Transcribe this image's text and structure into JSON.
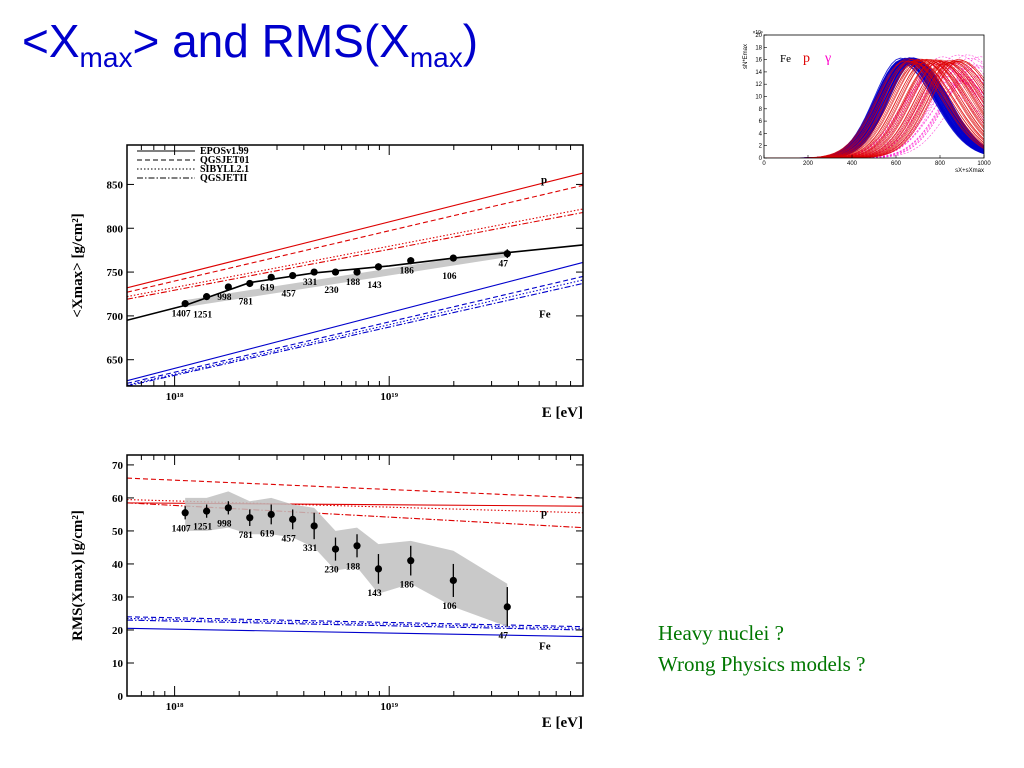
{
  "slide": {
    "title_pre": "<X",
    "title_sub1": "max",
    "title_mid": "> and RMS(X",
    "title_sub2": "max",
    "title_post": ")",
    "note_line1": "Heavy nuclei ?",
    "note_line2": "Wrong Physics models ?"
  },
  "colors": {
    "title": "#0000cc",
    "proton": "#dd0000",
    "iron": "#0000cc",
    "data": "#000000",
    "band": "#c0c0c0",
    "note": "#007700",
    "gamma": "#ff00cc"
  },
  "chart_data": [
    {
      "type": "line",
      "name": "xmax",
      "xlabel": "E [eV]",
      "ylabel": "<Xmax> [g/cm²]",
      "xscale": "log",
      "xlim": [
        6e+17,
        8e+19
      ],
      "ylim": [
        620,
        895
      ],
      "yticks": [
        650,
        700,
        750,
        800,
        850
      ],
      "xticks": [
        {
          "value": 1e+18,
          "label": "10¹⁸"
        },
        {
          "value": 1e+19,
          "label": "10¹⁹"
        }
      ],
      "legend": {
        "placement": "top-left",
        "entries": [
          {
            "label": "EPOSv1.99",
            "style": "solid"
          },
          {
            "label": "QGSJET01",
            "style": "dashed"
          },
          {
            "label": "SIBYLL2.1",
            "style": "dotted"
          },
          {
            "label": "QGSJETII",
            "style": "dashdot"
          }
        ]
      },
      "annotations": [
        {
          "text": "p",
          "color": "#dd0000"
        },
        {
          "text": "Fe",
          "color": "#0000cc"
        }
      ],
      "data_points": [
        {
          "e": 1.12e+18,
          "y": 714,
          "err": 3,
          "n": "1407"
        },
        {
          "e": 1.41e+18,
          "y": 722,
          "err": 3,
          "n": "1251"
        },
        {
          "e": 1.78e+18,
          "y": 733,
          "err": 3,
          "n": "998"
        },
        {
          "e": 2.24e+18,
          "y": 737,
          "err": 3,
          "n": "781"
        },
        {
          "e": 2.82e+18,
          "y": 744,
          "err": 3,
          "n": "619"
        },
        {
          "e": 3.55e+18,
          "y": 746,
          "err": 3,
          "n": "457"
        },
        {
          "e": 4.47e+18,
          "y": 750,
          "err": 3,
          "n": "331"
        },
        {
          "e": 5.62e+18,
          "y": 750,
          "err": 3,
          "n": "230"
        },
        {
          "e": 7.08e+18,
          "y": 750,
          "err": 4,
          "n": "188"
        },
        {
          "e": 8.91e+18,
          "y": 756,
          "err": 4,
          "n": "143"
        },
        {
          "e": 1.26e+19,
          "y": 763,
          "err": 4,
          "n": "186"
        },
        {
          "e": 1.99e+19,
          "y": 766,
          "err": 4,
          "n": "106"
        },
        {
          "e": 3.55e+19,
          "y": 771,
          "err": 5,
          "n": "47"
        }
      ],
      "band": {
        "e": [
          1.12e+18,
          3.55e+19
        ],
        "upper": [
          718,
          775
        ],
        "lower": [
          710,
          767
        ]
      },
      "fit": [
        [
          6e+17,
          695
        ],
        [
          1.12e+18,
          712
        ],
        [
          2.24e+18,
          738
        ],
        [
          4.47e+18,
          749
        ],
        [
          1e+19,
          757
        ],
        [
          2e+19,
          766
        ],
        [
          8e+19,
          781
        ]
      ],
      "model_lines": [
        {
          "group": "p",
          "style": "solid",
          "y": [
            732,
            863
          ]
        },
        {
          "group": "p",
          "style": "dashed",
          "y": [
            727,
            849
          ]
        },
        {
          "group": "p",
          "style": "dotted",
          "y": [
            722,
            822
          ]
        },
        {
          "group": "p",
          "style": "dashdot",
          "y": [
            719,
            818
          ]
        },
        {
          "group": "Fe",
          "style": "solid",
          "y": [
            626,
            761
          ]
        },
        {
          "group": "Fe",
          "style": "dashed",
          "y": [
            623,
            745
          ]
        },
        {
          "group": "Fe",
          "style": "dotted",
          "y": [
            621,
            741
          ]
        },
        {
          "group": "Fe",
          "style": "dashdot",
          "y": [
            620,
            737
          ]
        }
      ]
    },
    {
      "type": "line",
      "name": "rms",
      "xlabel": "E [eV]",
      "ylabel": "RMS(Xmax) [g/cm²]",
      "xscale": "log",
      "xlim": [
        6e+17,
        8e+19
      ],
      "ylim": [
        0,
        73
      ],
      "yticks": [
        0,
        10,
        20,
        30,
        40,
        50,
        60,
        70
      ],
      "xticks": [
        {
          "value": 1e+18,
          "label": "10¹⁸"
        },
        {
          "value": 1e+19,
          "label": "10¹⁹"
        }
      ],
      "annotations": [
        {
          "text": "p",
          "color": "#dd0000"
        },
        {
          "text": "Fe",
          "color": "#0000cc"
        }
      ],
      "data_points": [
        {
          "e": 1.12e+18,
          "y": 55.5,
          "err": 2.0,
          "n": "1407"
        },
        {
          "e": 1.41e+18,
          "y": 56,
          "err": 2.0,
          "n": "1251"
        },
        {
          "e": 1.78e+18,
          "y": 57,
          "err": 2.0,
          "n": "998"
        },
        {
          "e": 2.24e+18,
          "y": 54,
          "err": 2.5,
          "n": "781"
        },
        {
          "e": 2.82e+18,
          "y": 55,
          "err": 3.0,
          "n": "619"
        },
        {
          "e": 3.55e+18,
          "y": 53.5,
          "err": 3.0,
          "n": "457"
        },
        {
          "e": 4.47e+18,
          "y": 51.5,
          "err": 4.0,
          "n": "331"
        },
        {
          "e": 5.62e+18,
          "y": 44.5,
          "err": 3.5,
          "n": "230"
        },
        {
          "e": 7.08e+18,
          "y": 45.5,
          "err": 3.5,
          "n": "188"
        },
        {
          "e": 8.91e+18,
          "y": 38.5,
          "err": 4.5,
          "n": "143"
        },
        {
          "e": 1.26e+19,
          "y": 41,
          "err": 4.5,
          "n": "186"
        },
        {
          "e": 1.99e+19,
          "y": 35,
          "err": 5.0,
          "n": "106"
        },
        {
          "e": 3.55e+19,
          "y": 27,
          "err": 6.0,
          "n": "47"
        }
      ],
      "band": {
        "e": [
          1.12e+18,
          1.41e+18,
          1.78e+18,
          2.24e+18,
          2.82e+18,
          3.55e+18,
          4.47e+18,
          5.62e+18,
          7.08e+18,
          8.91e+18,
          1.26e+19,
          1.99e+19,
          3.55e+19
        ],
        "upper": [
          60,
          60,
          62,
          59,
          60,
          58,
          57,
          50,
          51,
          46,
          47,
          44,
          34
        ],
        "lower": [
          50,
          50,
          51,
          49,
          49,
          48,
          45,
          38,
          39,
          31,
          34,
          27,
          21
        ]
      },
      "model_lines": [
        {
          "group": "p",
          "style": "solid",
          "y": [
            58.5,
            57.5
          ]
        },
        {
          "group": "p",
          "style": "dashed",
          "y": [
            66,
            60
          ]
        },
        {
          "group": "p",
          "style": "dotted",
          "y": [
            59.5,
            55.5
          ]
        },
        {
          "group": "p",
          "style": "dashdot",
          "y": [
            58.5,
            51
          ]
        },
        {
          "group": "Fe",
          "style": "solid",
          "y": [
            20.5,
            18
          ]
        },
        {
          "group": "Fe",
          "style": "dashed",
          "y": [
            24,
            21
          ]
        },
        {
          "group": "Fe",
          "style": "dotted",
          "y": [
            23.5,
            20.5
          ]
        },
        {
          "group": "Fe",
          "style": "dashdot",
          "y": [
            23,
            20
          ]
        }
      ]
    },
    {
      "type": "line",
      "name": "profiles",
      "xlabel": "sX+sXmax",
      "ylabel": "sN*Emax",
      "ylabel_exponent": "×10⁶",
      "xlim": [
        0,
        1000
      ],
      "ylim": [
        0,
        20
      ],
      "xticks": [
        0,
        200,
        400,
        600,
        800,
        1000
      ],
      "yticks": [
        0,
        2,
        4,
        6,
        8,
        10,
        12,
        14,
        16,
        18,
        20
      ],
      "legend": {
        "placement": "top-left",
        "entries": [
          {
            "label": "Fe",
            "color": "#000000"
          },
          {
            "label": "p",
            "color": "#dd0000"
          },
          {
            "label": "γ",
            "color": "#ff00cc"
          }
        ]
      },
      "series": [
        {
          "group": "Fe",
          "color": "#0000cc",
          "peak_x": [
            620,
            690
          ],
          "peak_y": [
            15.5,
            16.3
          ],
          "width": 215,
          "count": 45
        },
        {
          "group": "p",
          "color": "#dd0000",
          "peak_x": [
            640,
            900
          ],
          "peak_y": [
            15.2,
            16.2
          ],
          "width": 235,
          "count": 42
        },
        {
          "group": "γ",
          "color": "#ff00cc",
          "peak_x": [
            760,
            1000
          ],
          "peak_y": [
            12,
            17
          ],
          "width": 260,
          "count": 28
        }
      ]
    }
  ]
}
